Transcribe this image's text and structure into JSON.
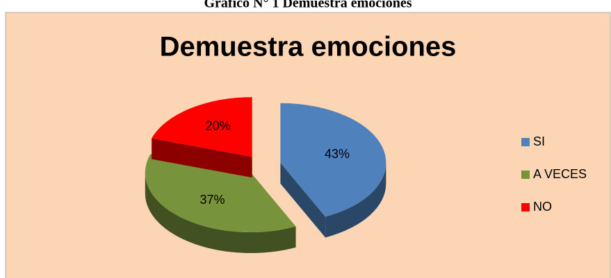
{
  "caption": "Gráfico N° 1 Demuestra emociones",
  "chart_data": {
    "type": "pie",
    "title": "Demuestra emociones",
    "categories": [
      "SI",
      "A VECES",
      "NO"
    ],
    "values": [
      43,
      37,
      20
    ],
    "value_labels": [
      "43%",
      "37%",
      "20%"
    ],
    "colors": [
      "#4f81bd",
      "#77933c",
      "#ff0000"
    ],
    "legend": "right"
  }
}
